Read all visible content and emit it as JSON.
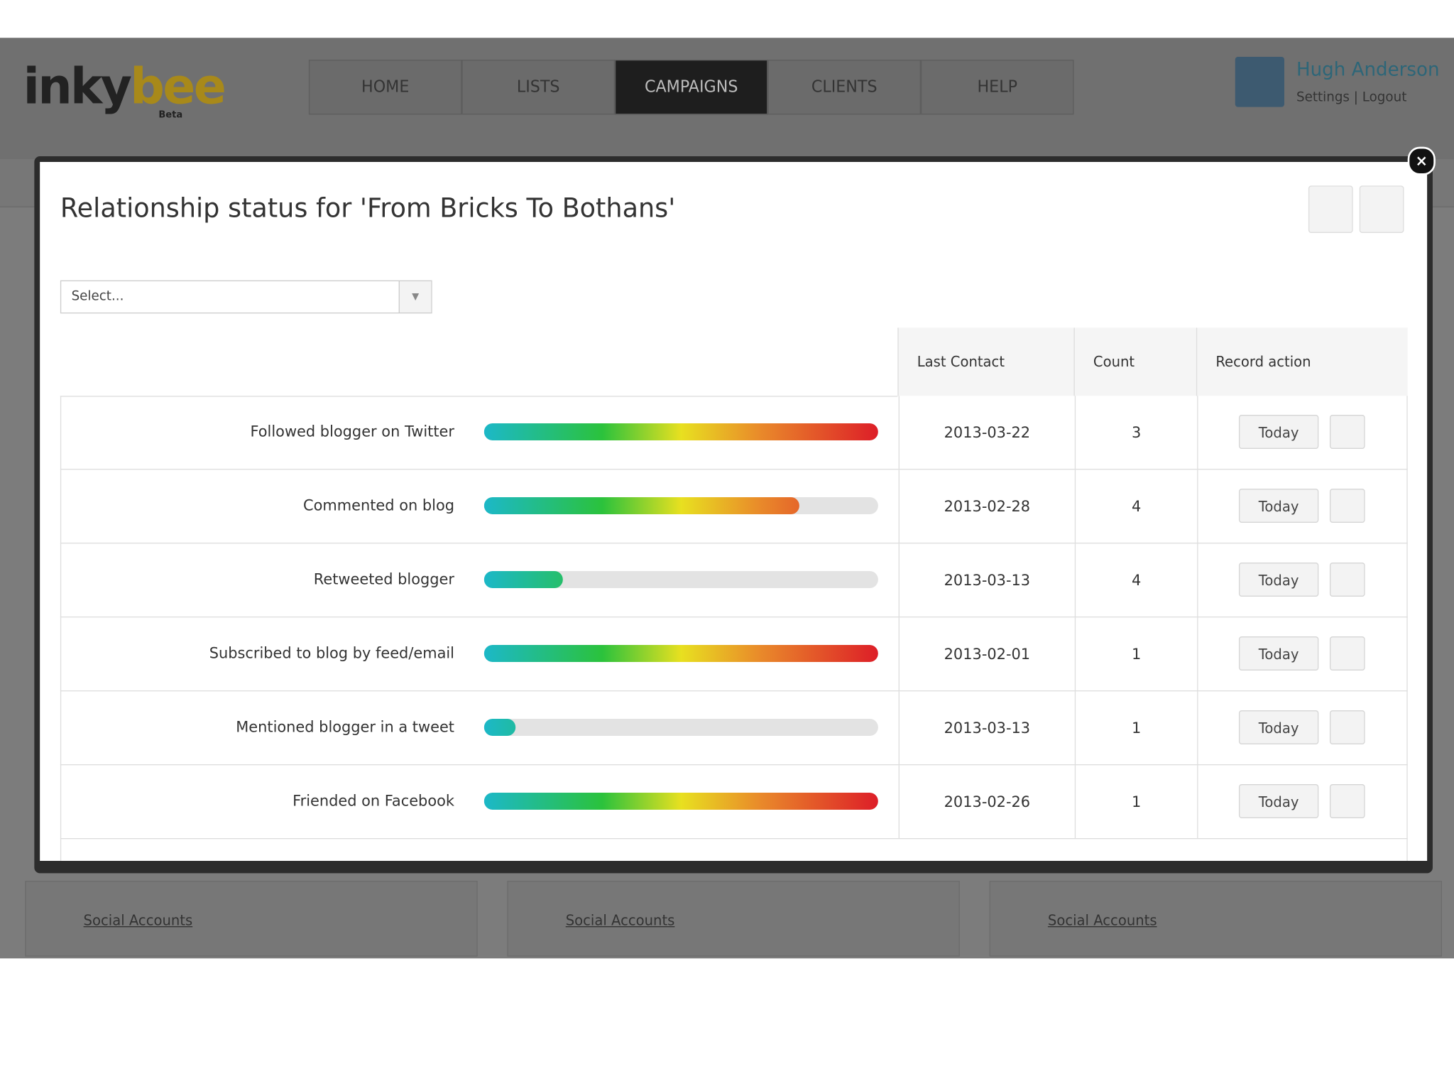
{
  "header": {
    "logo": {
      "first": "inky",
      "second": "bee",
      "badge": "Beta"
    },
    "nav": [
      "HOME",
      "LISTS",
      "CAMPAIGNS",
      "CLIENTS",
      "HELP"
    ],
    "active_nav": 2,
    "user": {
      "name": "Hugh Anderson",
      "settings": "Settings",
      "separator": "|",
      "logout": "Logout"
    }
  },
  "modal": {
    "title": "Relationship status for 'From Bricks To Bothans'",
    "select_placeholder": "Select...",
    "table": {
      "columns": [
        "Last Contact",
        "Count",
        "Record action"
      ],
      "rows": [
        {
          "label": "Followed blogger on Twitter",
          "progress": 100,
          "last_contact": "2013-03-22",
          "count": 3,
          "action": "Today"
        },
        {
          "label": "Commented on blog",
          "progress": 80,
          "last_contact": "2013-02-28",
          "count": 4,
          "action": "Today"
        },
        {
          "label": "Retweeted blogger",
          "progress": 20,
          "last_contact": "2013-03-13",
          "count": 4,
          "action": "Today"
        },
        {
          "label": "Subscribed to blog by feed/email",
          "progress": 100,
          "last_contact": "2013-02-01",
          "count": 1,
          "action": "Today"
        },
        {
          "label": "Mentioned blogger in a tweet",
          "progress": 8,
          "last_contact": "2013-03-13",
          "count": 1,
          "action": "Today"
        },
        {
          "label": "Friended on Facebook",
          "progress": 100,
          "last_contact": "2013-02-26",
          "count": 1,
          "action": "Today"
        }
      ]
    }
  },
  "footer": {
    "panels": [
      "Social Accounts",
      "Social Accounts",
      "Social Accounts"
    ]
  }
}
